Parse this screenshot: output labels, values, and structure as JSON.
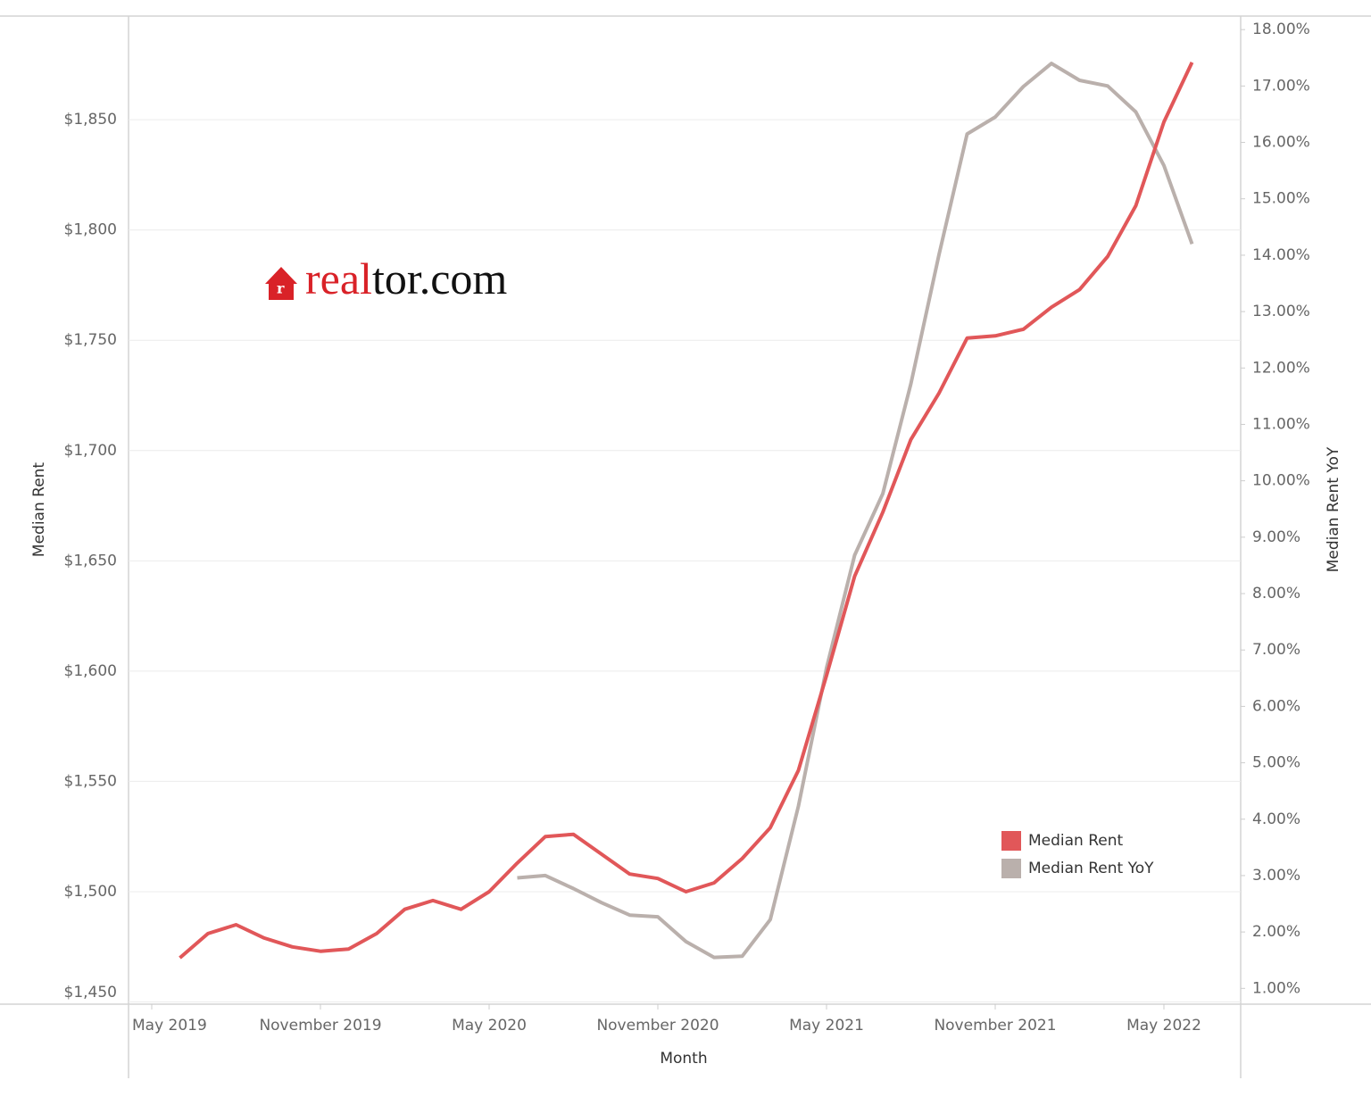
{
  "chart_data": {
    "type": "line",
    "logo": [
      "real",
      "tor.com"
    ],
    "x_label": "Month",
    "y_label": "Median Rent",
    "y2_label": "Median Rent YoY",
    "x": [
      "2019-06",
      "2019-07",
      "2019-08",
      "2019-09",
      "2019-10",
      "2019-11",
      "2019-12",
      "2020-01",
      "2020-02",
      "2020-03",
      "2020-04",
      "2020-05",
      "2020-06",
      "2020-07",
      "2020-08",
      "2020-09",
      "2020-10",
      "2020-11",
      "2020-12",
      "2021-01",
      "2021-02",
      "2021-03",
      "2021-04",
      "2021-05",
      "2021-06",
      "2021-07",
      "2021-08",
      "2021-09",
      "2021-10",
      "2021-11",
      "2021-12",
      "2022-01",
      "2022-02",
      "2022-03",
      "2022-04",
      "2022-05",
      "2022-06"
    ],
    "xlim": [
      "2019-04",
      "2022-07"
    ],
    "xticks": [
      {
        "value": "2019-05",
        "label": "May 2019"
      },
      {
        "value": "2019-11",
        "label": "November 2019"
      },
      {
        "value": "2020-05",
        "label": "May 2020"
      },
      {
        "value": "2020-11",
        "label": "November 2020"
      },
      {
        "value": "2021-05",
        "label": "May 2021"
      },
      {
        "value": "2021-11",
        "label": "November 2021"
      },
      {
        "value": "2022-05",
        "label": "May 2022"
      }
    ],
    "ylim": [
      1449,
      1897
    ],
    "yticks": [
      {
        "value": 1450,
        "label": "$1,450"
      },
      {
        "value": 1500,
        "label": "$1,500"
      },
      {
        "value": 1550,
        "label": "$1,550"
      },
      {
        "value": 1600,
        "label": "$1,600"
      },
      {
        "value": 1650,
        "label": "$1,650"
      },
      {
        "value": 1700,
        "label": "$1,700"
      },
      {
        "value": 1750,
        "label": "$1,750"
      },
      {
        "value": 1800,
        "label": "$1,800"
      },
      {
        "value": 1850,
        "label": "$1,850"
      }
    ],
    "y2lim": [
      0.72,
      18.24
    ],
    "y2ticks": [
      {
        "value": 1,
        "label": "1.00%"
      },
      {
        "value": 2,
        "label": "2.00%"
      },
      {
        "value": 3,
        "label": "3.00%"
      },
      {
        "value": 4,
        "label": "4.00%"
      },
      {
        "value": 5,
        "label": "5.00%"
      },
      {
        "value": 6,
        "label": "6.00%"
      },
      {
        "value": 7,
        "label": "7.00%"
      },
      {
        "value": 8,
        "label": "8.00%"
      },
      {
        "value": 9,
        "label": "9.00%"
      },
      {
        "value": 10,
        "label": "10.00%"
      },
      {
        "value": 11,
        "label": "11.00%"
      },
      {
        "value": 12,
        "label": "12.00%"
      },
      {
        "value": 13,
        "label": "13.00%"
      },
      {
        "value": 14,
        "label": "14.00%"
      },
      {
        "value": 15,
        "label": "15.00%"
      },
      {
        "value": 16,
        "label": "16.00%"
      },
      {
        "value": 17,
        "label": "17.00%"
      },
      {
        "value": 18,
        "label": "18.00%"
      }
    ],
    "grid": true,
    "series": [
      {
        "name": "Median Rent",
        "color": "#e15759",
        "values": [
          1470,
          1481,
          1485,
          1479,
          1475,
          1473,
          1474,
          1481,
          1492,
          1496,
          1492,
          1500,
          1513,
          1525,
          1526,
          1517,
          1508,
          1506,
          1500,
          1504,
          1515,
          1529,
          1555,
          1598,
          1643,
          1672,
          1705,
          1726,
          1751,
          1752,
          1755,
          1765,
          1773,
          1788,
          1811,
          1849,
          1876
        ]
      },
      {
        "name": "Median Rent YoY",
        "color": "#bab0ac",
        "axis": "y2",
        "values": [
          null,
          null,
          null,
          null,
          null,
          null,
          null,
          null,
          null,
          null,
          null,
          null,
          2.96,
          3.0,
          2.77,
          2.52,
          2.3,
          2.27,
          1.83,
          1.55,
          1.57,
          2.22,
          4.23,
          6.68,
          8.68,
          9.77,
          11.72,
          14.01,
          16.15,
          16.45,
          16.99,
          17.4,
          17.1,
          17.0,
          16.54,
          15.59,
          14.2
        ]
      }
    ]
  }
}
